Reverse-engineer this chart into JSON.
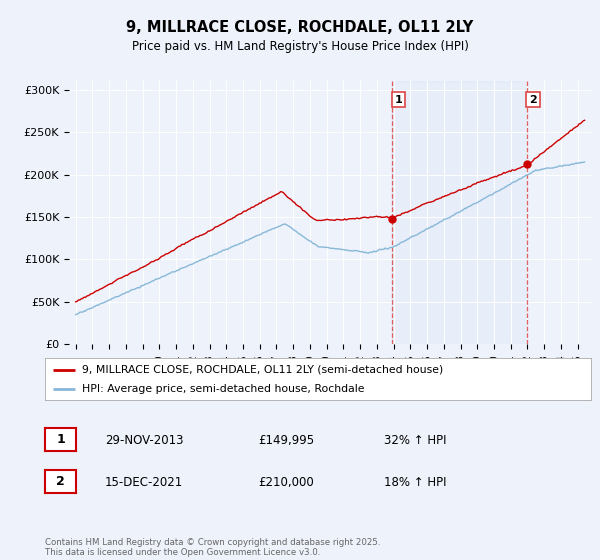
{
  "title": "9, MILLRACE CLOSE, ROCHDALE, OL11 2LY",
  "subtitle": "Price paid vs. HM Land Registry's House Price Index (HPI)",
  "property_label": "9, MILLRACE CLOSE, ROCHDALE, OL11 2LY (semi-detached house)",
  "hpi_label": "HPI: Average price, semi-detached house, Rochdale",
  "transaction1_date": "29-NOV-2013",
  "transaction1_price": 149995,
  "transaction1_hpi": "32% ↑ HPI",
  "transaction2_date": "15-DEC-2021",
  "transaction2_price": 210000,
  "transaction2_hpi": "18% ↑ HPI",
  "yticks": [
    0,
    50000,
    100000,
    150000,
    200000,
    250000,
    300000
  ],
  "ytick_labels": [
    "£0",
    "£50K",
    "£100K",
    "£150K",
    "£200K",
    "£250K",
    "£300K"
  ],
  "background_color": "#eef2fb",
  "plot_bg_color": "#eef2fb",
  "line_color_property": "#cc0000",
  "line_color_hpi": "#88b8d8",
  "vline_color": "#dd4444",
  "footer_text": "Contains HM Land Registry data © Crown copyright and database right 2025.\nThis data is licensed under the Open Government Licence v3.0.",
  "property_purchase_year1": 2013.92,
  "property_purchase_year2": 2021.96,
  "xmin": 1994.6,
  "xmax": 2025.8,
  "ymin": 0,
  "ymax": 310000
}
